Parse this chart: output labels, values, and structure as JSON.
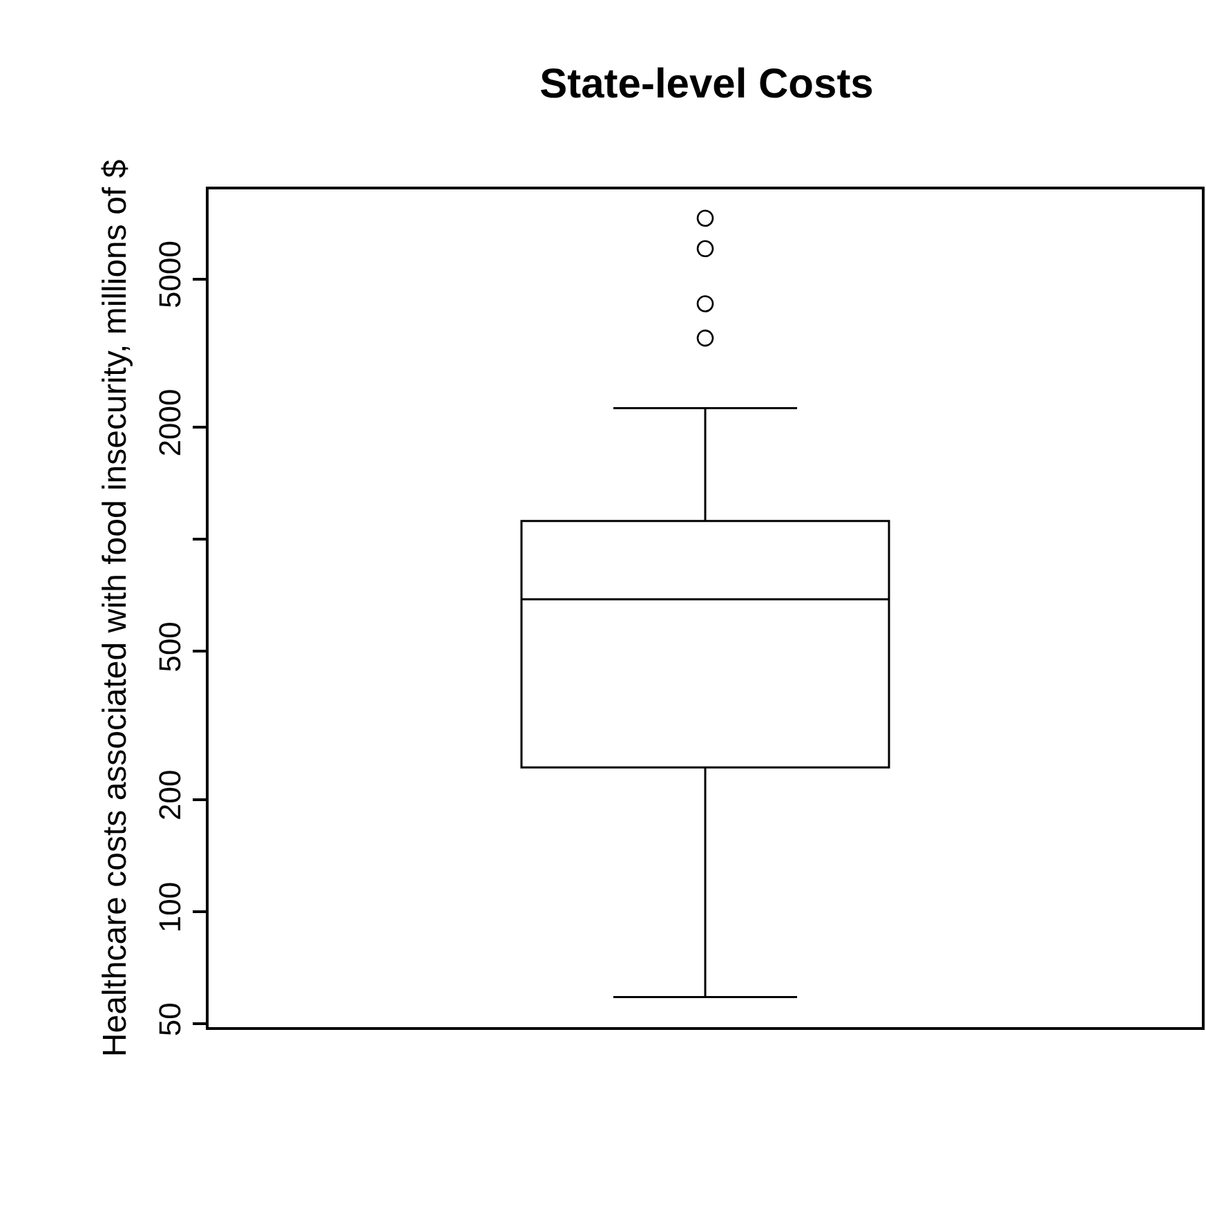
{
  "chart_data": {
    "type": "box",
    "title": "State-level Costs",
    "ylabel": "Healthcare costs associated with food insecurity, millions of $",
    "categories": [
      null
    ],
    "boxes": [
      {
        "low": 59,
        "q1": 244,
        "median": 690,
        "q3": 1120,
        "high": 2250,
        "outliers": [
          3470,
          4290,
          6030,
          7280
        ]
      }
    ],
    "color": "#000000",
    "log": "y",
    "ylim": [
      49,
      8700
    ],
    "yticks": [
      50,
      100,
      200,
      500,
      {
        "value": 1000,
        "label": null
      },
      2000,
      5000
    ],
    "tick_labels": "y",
    "marker": "circle"
  }
}
